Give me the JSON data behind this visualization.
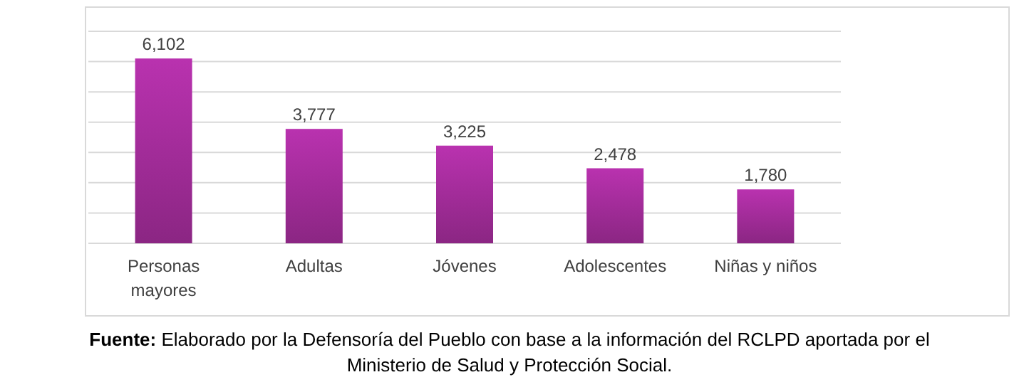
{
  "chart_data": {
    "type": "bar",
    "categories": [
      "Personas mayores",
      "Adultas",
      "Jóvenes",
      "Adolescentes",
      "Niñas y niños"
    ],
    "values": [
      6102,
      3777,
      3225,
      2478,
      1780
    ],
    "value_labels": [
      "6,102",
      "3,777",
      "3,225",
      "2,478",
      "1,780"
    ],
    "color": "#9b2a92",
    "ylim": [
      0,
      7000
    ],
    "yticks": [
      {
        "value": 0,
        "label": null
      },
      {
        "value": 1000,
        "label": null
      },
      {
        "value": 2000,
        "label": null
      },
      {
        "value": 3000,
        "label": null
      },
      {
        "value": 4000,
        "label": null
      },
      {
        "value": 5000,
        "label": null
      },
      {
        "value": 6000,
        "label": null
      },
      {
        "value": 7000,
        "label": null
      }
    ],
    "grid": "y",
    "tick_labels": "x",
    "annotations": [
      "Fuente: Elaborado por la Defensoría del Pueblo con base a la información del RCLPD aportada por el Ministerio de Salud y Protección Social."
    ]
  }
}
